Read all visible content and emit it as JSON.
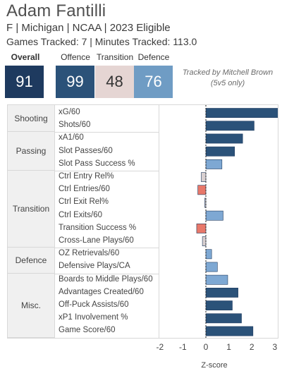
{
  "header": {
    "name": "Adam Fantilli",
    "subtitle": "F | Michigan | NCAA | 2023 Eligible",
    "games_line": "Games Tracked: 7 | Minutes Tracked: 113.0"
  },
  "scores": {
    "overall_label": "Overall",
    "overall": "91",
    "offence_label": "Offence",
    "offence": "99",
    "transition_label": "Transition",
    "transition": "48",
    "defence_label": "Defence",
    "defence": "76"
  },
  "tracked_note": [
    "Tracked by Mitchell Brown",
    "(5v5 only)"
  ],
  "colors": {
    "overall_card": "#1e3a5f",
    "offence_card": "#2b5279",
    "transition_card": "#e5d5d3",
    "defence_card": "#6f9cc4",
    "positive_dark": "#2b5279",
    "positive_light": "#7ea8d3",
    "negative_light": "#d9d0d0",
    "negative_strong": "#e8786a"
  },
  "chart_data": {
    "type": "bar",
    "orientation": "horizontal",
    "xlabel": "Z-score",
    "xlim": [
      -3,
      3
    ],
    "xticks": [
      -2,
      -1,
      0,
      1,
      2,
      3
    ],
    "groups": [
      {
        "name": "Shooting",
        "metrics": [
          {
            "label": "xG/60",
            "value": 3.2
          },
          {
            "label": "Shots/60",
            "value": 2.1
          }
        ]
      },
      {
        "name": "Passing",
        "metrics": [
          {
            "label": "xA1/60",
            "value": 1.6
          },
          {
            "label": "Slot Passes/60",
            "value": 1.25
          },
          {
            "label": "Slot Pass Success %",
            "value": 0.7
          }
        ]
      },
      {
        "name": "Transition",
        "metrics": [
          {
            "label": "Ctrl Entry Rel%",
            "value": -0.2
          },
          {
            "label": "Ctrl Entries/60",
            "value": -0.35
          },
          {
            "label": "Ctrl Exit Rel%",
            "value": -0.05
          },
          {
            "label": "Ctrl Exits/60",
            "value": 0.75
          },
          {
            "label": "Transition Success %",
            "value": -0.4
          },
          {
            "label": "Cross-Lane Plays/60",
            "value": -0.15
          }
        ]
      },
      {
        "name": "Defence",
        "metrics": [
          {
            "label": "OZ Retrievals/60",
            "value": 0.25
          },
          {
            "label": "Defensive Plays/CA",
            "value": 0.5
          }
        ]
      },
      {
        "name": "Misc.",
        "metrics": [
          {
            "label": "Boards to Middle Plays/60",
            "value": 0.95
          },
          {
            "label": "Advantages Created/60",
            "value": 1.4
          },
          {
            "label": "Off-Puck Assists/60",
            "value": 1.15
          },
          {
            "label": "xP1 Involvement %",
            "value": 1.55
          },
          {
            "label": "Game Score/60",
            "value": 2.05
          }
        ]
      }
    ]
  }
}
